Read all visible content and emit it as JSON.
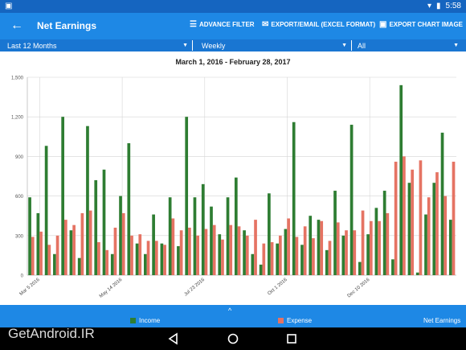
{
  "status": {
    "time": "5:58"
  },
  "appbar": {
    "title": "Net Earnings",
    "advance_filter": "ADVANCE FILTER",
    "export_email": "EXPORT/EMAIL (EXCEL FORMAT)",
    "export_image": "EXPORT CHART IMAGE"
  },
  "filters": {
    "period": "Last 12 Months",
    "interval": "Weekly",
    "category": "All"
  },
  "legend": {
    "income": "Income",
    "expense": "Expense",
    "net": "Net Earnings"
  },
  "watermark": "GetAndroid.IR",
  "colors": {
    "income": "#2e7d32",
    "expense": "#e57363",
    "accent": "#1e88e5"
  },
  "chart_data": {
    "type": "bar",
    "title": "March 1, 2016 - February 28, 2017",
    "ylim": [
      0,
      1500
    ],
    "yticks": [
      "0",
      "300",
      "600",
      "900",
      "1,200",
      "1,500"
    ],
    "xtick_labels": [
      "Mar 5 2016",
      "May 14 2016",
      "Jul 23 2016",
      "Oct 1 2016",
      "Dec 10 2016"
    ],
    "series": [
      {
        "name": "Income",
        "values": [
          590,
          470,
          980,
          160,
          1200,
          340,
          130,
          1130,
          720,
          800,
          160,
          600,
          1000,
          240,
          160,
          460,
          240,
          590,
          220,
          1200,
          590,
          690,
          520,
          310,
          590,
          740,
          340,
          160,
          80,
          620,
          240,
          350,
          1160,
          230,
          450,
          420,
          190,
          640,
          300,
          1140,
          100,
          310,
          510,
          640,
          120,
          1440,
          700,
          20,
          460,
          700,
          1080,
          420
        ]
      },
      {
        "name": "Expense",
        "values": [
          290,
          330,
          230,
          300,
          420,
          380,
          470,
          490,
          250,
          190,
          360,
          470,
          300,
          310,
          260,
          260,
          230,
          430,
          340,
          360,
          300,
          350,
          380,
          270,
          380,
          370,
          300,
          420,
          240,
          250,
          300,
          430,
          290,
          370,
          280,
          410,
          260,
          400,
          340,
          340,
          490,
          410,
          410,
          470,
          860,
          900,
          800,
          870,
          590,
          780,
          600,
          860
        ]
      }
    ]
  }
}
